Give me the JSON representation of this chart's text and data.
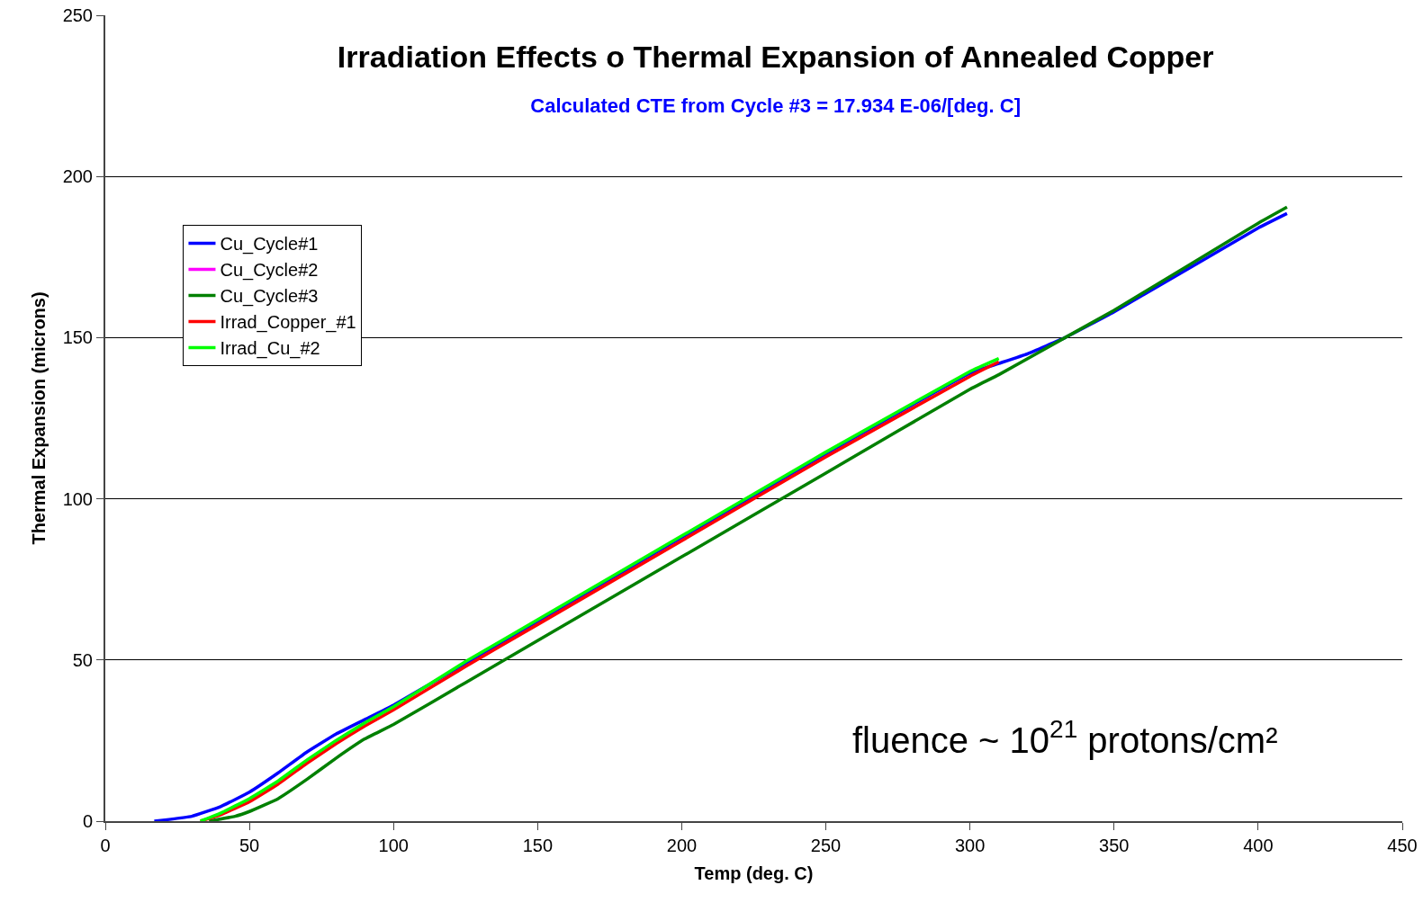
{
  "chart_data": {
    "type": "line",
    "title": "Irradiation Effects o Thermal Expansion of Annealed Copper",
    "subtitle": "Calculated CTE from Cycle #3 = 17.934 E-06/[deg. C]",
    "xlabel": "Temp (deg. C)",
    "ylabel": "Thermal Expansion (microns)",
    "annotations": [
      "fluence ~ 10$^{21}$ protons/cm²"
    ],
    "xlim": [
      0,
      450
    ],
    "xticks": [
      0,
      50,
      100,
      150,
      200,
      250,
      300,
      350,
      400,
      450
    ],
    "ylim": [
      0,
      250
    ],
    "yticks": [
      0,
      50,
      100,
      150,
      200,
      250
    ],
    "grid": "y",
    "legend": "top left",
    "marker": "none",
    "line_style": "solid",
    "series": [
      {
        "name": "Cu_Cycle#1",
        "color": "#0000ff",
        "x": [
          17,
          20,
          30,
          40,
          50,
          60,
          70,
          80,
          90,
          100,
          125,
          150,
          200,
          250,
          300,
          310,
          320,
          333,
          350,
          400,
          410
        ],
        "values": [
          0,
          0.3,
          1.5,
          4.5,
          9,
          15,
          21.5,
          27,
          31.5,
          36,
          49,
          62,
          88,
          114,
          139,
          142,
          145,
          150,
          158,
          184,
          188.5
        ]
      },
      {
        "name": "Cu_Cycle#2",
        "color": "#ff00ff",
        "values": [
          null,
          null
        ]
      },
      {
        "name": "Cu_Cycle#3",
        "color": "#008000",
        "x": [
          36,
          45,
          50,
          60,
          70,
          80,
          90,
          100,
          125,
          150,
          200,
          250,
          300,
          310,
          333,
          350,
          400,
          410
        ],
        "values": [
          0,
          1.5,
          3,
          7,
          13,
          19.5,
          25.5,
          30,
          43,
          56,
          82,
          108,
          134,
          138.5,
          150,
          158.5,
          185.5,
          190.5
        ]
      },
      {
        "name": "Irrad_Copper_#1",
        "color": "#ff0000",
        "x": [
          33,
          40,
          50,
          60,
          70,
          80,
          90,
          100,
          125,
          150,
          200,
          250,
          300,
          310
        ],
        "values": [
          0,
          2,
          6,
          11.5,
          18,
          24,
          29.5,
          34.5,
          48,
          61,
          87,
          113,
          138,
          142.5
        ]
      },
      {
        "name": "Irrad_Cu_#2",
        "color": "#00ff00",
        "x": [
          33,
          40,
          50,
          60,
          70,
          80,
          90,
          100,
          125,
          150,
          200,
          250,
          300,
          310
        ],
        "values": [
          0,
          2.5,
          7,
          12.5,
          19,
          25,
          30.5,
          35.5,
          49.5,
          62.5,
          88.5,
          114.5,
          139.5,
          143.5
        ]
      }
    ]
  }
}
